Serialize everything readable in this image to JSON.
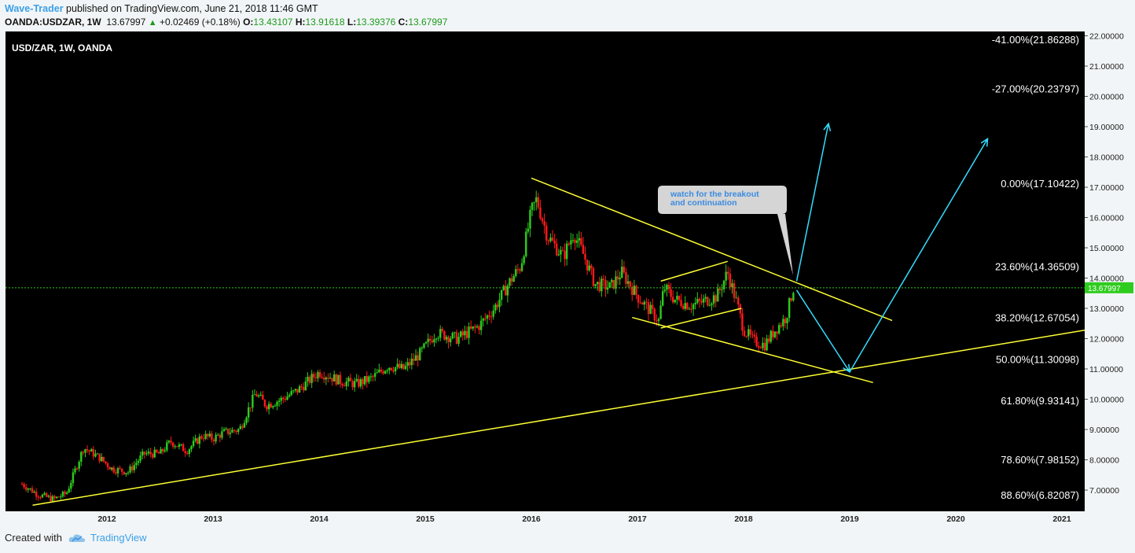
{
  "header": {
    "author": "Wave-Trader",
    "published": " published on TradingView.com, June 21, 2018 11:46 GMT",
    "symbol": "OANDA:USDZAR, 1W",
    "last": "13.67997",
    "change": "+0.02469 (+0.18%)",
    "open_label": "O:",
    "open": "13.43107",
    "high_label": "H:",
    "high": "13.91618",
    "low_label": "L:",
    "low": "13.39376",
    "close_label": "C:",
    "close": "13.67997"
  },
  "legend_label": "USD/ZAR, 1W, OANDA",
  "callout": {
    "line1": "watch for the breakout",
    "line2": "and continuation"
  },
  "last_price_tag": "13.67997",
  "footer": {
    "created_with": "Created with",
    "brand": "TradingView"
  },
  "colors": {
    "up": "#2ecc1e",
    "down": "#ff1a1a",
    "trendline": "#ffff33",
    "projection": "#33ddff",
    "current_price_line": "#2ecc1e"
  },
  "chart_data": {
    "type": "candlestick",
    "symbol": "USD/ZAR",
    "interval": "1W",
    "source": "OANDA",
    "x_ticks": [
      "2012",
      "2013",
      "2014",
      "2015",
      "2016",
      "2017",
      "2018",
      "2019",
      "2020",
      "2021"
    ],
    "y_ticks": [
      "7.00000",
      "8.00000",
      "9.00000",
      "10.00000",
      "11.00000",
      "12.00000",
      "13.00000",
      "14.00000",
      "15.00000",
      "16.00000",
      "17.00000",
      "18.00000",
      "19.00000",
      "20.00000",
      "21.00000",
      "22.00000"
    ],
    "ylim": [
      6.4,
      22.1
    ],
    "current_price": 13.67997,
    "fib_levels": [
      {
        "label": "-41.00%(21.86288)",
        "price": 21.86288
      },
      {
        "label": "-27.00%(20.23797)",
        "price": 20.23797
      },
      {
        "label": "0.00%(17.10422)",
        "price": 17.10422
      },
      {
        "label": "23.60%(14.36509)",
        "price": 14.36509
      },
      {
        "label": "38.20%(12.67054)",
        "price": 12.67054
      },
      {
        "label": "50.00%(11.30098)",
        "price": 11.30098
      },
      {
        "label": "61.80%(9.93141)",
        "price": 9.93141
      },
      {
        "label": "78.60%(7.98152)",
        "price": 7.98152
      },
      {
        "label": "88.60%(6.82087)",
        "price": 6.82087
      }
    ],
    "price_path": [
      [
        2011.2,
        7.2
      ],
      [
        2011.35,
        6.85
      ],
      [
        2011.5,
        6.7
      ],
      [
        2011.62,
        6.9
      ],
      [
        2011.78,
        8.4
      ],
      [
        2011.92,
        8.1
      ],
      [
        2012.05,
        7.7
      ],
      [
        2012.2,
        7.6
      ],
      [
        2012.35,
        8.2
      ],
      [
        2012.5,
        8.2
      ],
      [
        2012.6,
        8.6
      ],
      [
        2012.75,
        8.3
      ],
      [
        2012.9,
        8.8
      ],
      [
        2013.0,
        8.7
      ],
      [
        2013.1,
        8.9
      ],
      [
        2013.25,
        9.0
      ],
      [
        2013.4,
        10.2
      ],
      [
        2013.5,
        9.8
      ],
      [
        2013.65,
        10.0
      ],
      [
        2013.8,
        10.3
      ],
      [
        2014.0,
        10.9
      ],
      [
        2014.2,
        10.6
      ],
      [
        2014.35,
        10.5
      ],
      [
        2014.5,
        10.7
      ],
      [
        2014.65,
        11.1
      ],
      [
        2014.8,
        11.0
      ],
      [
        2014.95,
        11.5
      ],
      [
        2015.1,
        12.2
      ],
      [
        2015.3,
        12.0
      ],
      [
        2015.5,
        12.4
      ],
      [
        2015.65,
        13.0
      ],
      [
        2015.8,
        13.9
      ],
      [
        2015.9,
        14.4
      ],
      [
        2016.0,
        16.2
      ],
      [
        2016.05,
        16.6
      ],
      [
        2016.15,
        15.4
      ],
      [
        2016.3,
        14.7
      ],
      [
        2016.4,
        15.5
      ],
      [
        2016.5,
        14.7
      ],
      [
        2016.6,
        13.8
      ],
      [
        2016.75,
        13.7
      ],
      [
        2016.85,
        14.2
      ],
      [
        2017.0,
        13.4
      ],
      [
        2017.1,
        13.0
      ],
      [
        2017.2,
        12.6
      ],
      [
        2017.25,
        13.7
      ],
      [
        2017.35,
        13.3
      ],
      [
        2017.5,
        13.1
      ],
      [
        2017.6,
        13.2
      ],
      [
        2017.75,
        13.4
      ],
      [
        2017.85,
        14.2
      ],
      [
        2017.95,
        13.0
      ],
      [
        2018.0,
        12.3
      ],
      [
        2018.1,
        11.9
      ],
      [
        2018.2,
        11.8
      ],
      [
        2018.3,
        12.3
      ],
      [
        2018.4,
        12.7
      ],
      [
        2018.47,
        13.68
      ]
    ],
    "trendlines": [
      {
        "name": "descending resistance",
        "from": [
          2016.0,
          17.3
        ],
        "to": [
          2019.4,
          12.6
        ]
      },
      {
        "name": "lower channel support",
        "from": [
          2016.95,
          12.7
        ],
        "to": [
          2019.22,
          10.55
        ]
      },
      {
        "name": "long-term support",
        "from": [
          2011.3,
          6.5
        ],
        "to": [
          2021.25,
          12.3
        ]
      },
      {
        "name": "flag upper",
        "from": [
          2017.22,
          13.9
        ],
        "to": [
          2017.85,
          14.55
        ]
      },
      {
        "name": "flag lower",
        "from": [
          2017.22,
          12.35
        ],
        "to": [
          2017.98,
          13.0
        ]
      }
    ],
    "projections": [
      {
        "from": [
          2018.5,
          13.9
        ],
        "to": [
          2018.8,
          19.1
        ]
      },
      {
        "from": [
          2018.5,
          13.6
        ],
        "to": [
          2019.0,
          10.9
        ]
      },
      {
        "from": [
          2019.0,
          10.9
        ],
        "to": [
          2020.3,
          18.6
        ]
      }
    ]
  }
}
